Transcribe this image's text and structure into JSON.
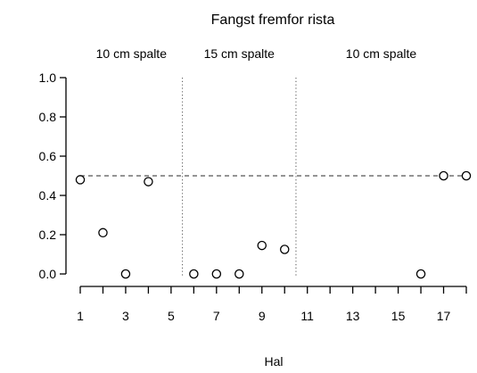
{
  "chart_data": {
    "type": "scatter",
    "title": "Fangst fremfor rista",
    "xlabel": "Hal",
    "ylabel": "",
    "xlim": [
      1,
      18
    ],
    "ylim": [
      0,
      1
    ],
    "x_ticks": [
      1,
      2,
      3,
      4,
      5,
      6,
      7,
      8,
      9,
      10,
      11,
      12,
      13,
      14,
      15,
      16,
      17,
      18
    ],
    "x_tick_labels": [
      "1",
      "",
      "3",
      "",
      "5",
      "",
      "7",
      "",
      "9",
      "",
      "11",
      "",
      "13",
      "",
      "15",
      "",
      "17",
      ""
    ],
    "y_ticks": [
      0.0,
      0.2,
      0.4,
      0.6,
      0.8,
      1.0
    ],
    "y_tick_labels": [
      "0.0",
      "0.2",
      "0.4",
      "0.6",
      "0.8",
      "1.0"
    ],
    "points": [
      {
        "x": 1,
        "y": 0.48
      },
      {
        "x": 2,
        "y": 0.21
      },
      {
        "x": 3,
        "y": 0.0
      },
      {
        "x": 4,
        "y": 0.47
      },
      {
        "x": 6,
        "y": 0.0
      },
      {
        "x": 7,
        "y": 0.0
      },
      {
        "x": 8,
        "y": 0.0
      },
      {
        "x": 9,
        "y": 0.145
      },
      {
        "x": 10,
        "y": 0.125
      },
      {
        "x": 16,
        "y": 0.0
      },
      {
        "x": 17,
        "y": 0.5
      },
      {
        "x": 18,
        "y": 0.5
      }
    ],
    "reference_line_y": 0.5,
    "section_dividers_x": [
      5.5,
      10.5
    ],
    "section_labels": [
      {
        "text": "10 cm spalte",
        "from": 1,
        "to": 5.5
      },
      {
        "text": "15 cm spalte",
        "from": 5.5,
        "to": 10.5
      },
      {
        "text": "10 cm spalte",
        "from": 10.5,
        "to": 18
      }
    ],
    "grid": false,
    "legend": "none"
  }
}
